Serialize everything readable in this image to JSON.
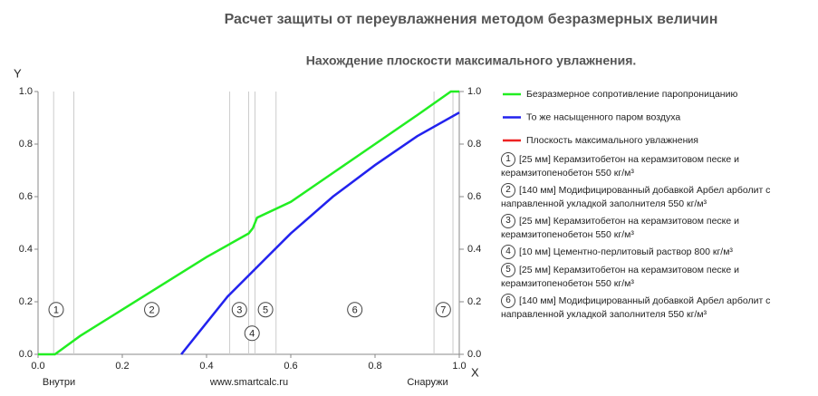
{
  "chart_data": {
    "type": "line",
    "title": "Расчет защиты от переувлажнения методом безразмерных величин",
    "subtitle": "Нахождение плоскости максимального увлажнения.",
    "x_label": "X",
    "y_label": "Y",
    "left_note": "Внутри",
    "center_note": "www.smartcalc.ru",
    "right_note": "Снаружи",
    "xlim": [
      0,
      1
    ],
    "ylim": [
      0,
      1
    ],
    "y2lim": [
      0,
      1
    ],
    "xticks": [
      {
        "value": 0,
        "label": "0.0"
      },
      0.2,
      0.4,
      0.6,
      0.8,
      {
        "value": 1,
        "label": "1.0"
      }
    ],
    "yticks": [
      {
        "value": 0,
        "label": "0.0"
      },
      0.2,
      0.4,
      0.6,
      0.8,
      {
        "value": 1,
        "label": "1.0"
      }
    ],
    "y2ticks": [
      {
        "value": 0,
        "label": "0.0"
      },
      0.2,
      0.4,
      0.6,
      0.8,
      {
        "value": 1,
        "label": "1.0"
      }
    ],
    "series": [
      {
        "name": "Безразмерное сопротивление паропроницанию",
        "color": "#22ee22",
        "x": [
          0,
          0.04,
          0.1,
          0.2,
          0.3,
          0.4,
          0.5,
          0.51,
          0.52,
          0.6,
          0.7,
          0.8,
          0.9,
          0.98,
          1.0
        ],
        "values": [
          0,
          0,
          0.07,
          0.17,
          0.27,
          0.37,
          0.46,
          0.48,
          0.52,
          0.58,
          0.69,
          0.8,
          0.91,
          1.0,
          1.0
        ]
      },
      {
        "name": "То же насыщенного паром воздуха",
        "color": "#2222ee",
        "x": [
          0.34,
          0.4,
          0.45,
          0.5,
          0.55,
          0.6,
          0.7,
          0.8,
          0.9,
          1.0
        ],
        "values": [
          0,
          0.12,
          0.22,
          0.3,
          0.38,
          0.46,
          0.6,
          0.72,
          0.83,
          0.92
        ]
      },
      {
        "name": "Плоскость максимального увлажнения",
        "color": "#ee2222",
        "x": [],
        "values": []
      }
    ],
    "boundaries": [
      0.037,
      0.085,
      0.455,
      0.5,
      0.515,
      0.565,
      0.94,
      0.985
    ],
    "layers": [
      {
        "number": 1,
        "label_x": 0.043,
        "label_y": 0.17,
        "text": "[25 мм] Керамзитобетон на керамзитовом песке и керамзитопенобетон 550 кг/м³"
      },
      {
        "number": 2,
        "label_x": 0.27,
        "label_y": 0.17,
        "text": "[140 мм] Модифицированный добавкой Арбел арболит с направленной укладкой заполнителя 550 кг/м³"
      },
      {
        "number": 3,
        "label_x": 0.478,
        "label_y": 0.17,
        "text": "[25 мм] Керамзитобетон на керамзитовом песке и керамзитопенобетон 550 кг/м³"
      },
      {
        "number": 4,
        "label_x": 0.508,
        "label_y": 0.08,
        "text": "[10 мм] Цементно-перлитовый раствор 800 кг/м³"
      },
      {
        "number": 5,
        "label_x": 0.54,
        "label_y": 0.17,
        "text": "[25 мм] Керамзитобетон на керамзитовом песке и керамзитопенобетон 550 кг/м³"
      },
      {
        "number": 6,
        "label_x": 0.752,
        "label_y": 0.17,
        "text": "[140 мм] Модифицированный добавкой Арбел арболит с направленной укладкой заполнителя 550 кг/м³"
      },
      {
        "number": 7,
        "label_x": 0.962,
        "label_y": 0.17
      }
    ]
  }
}
